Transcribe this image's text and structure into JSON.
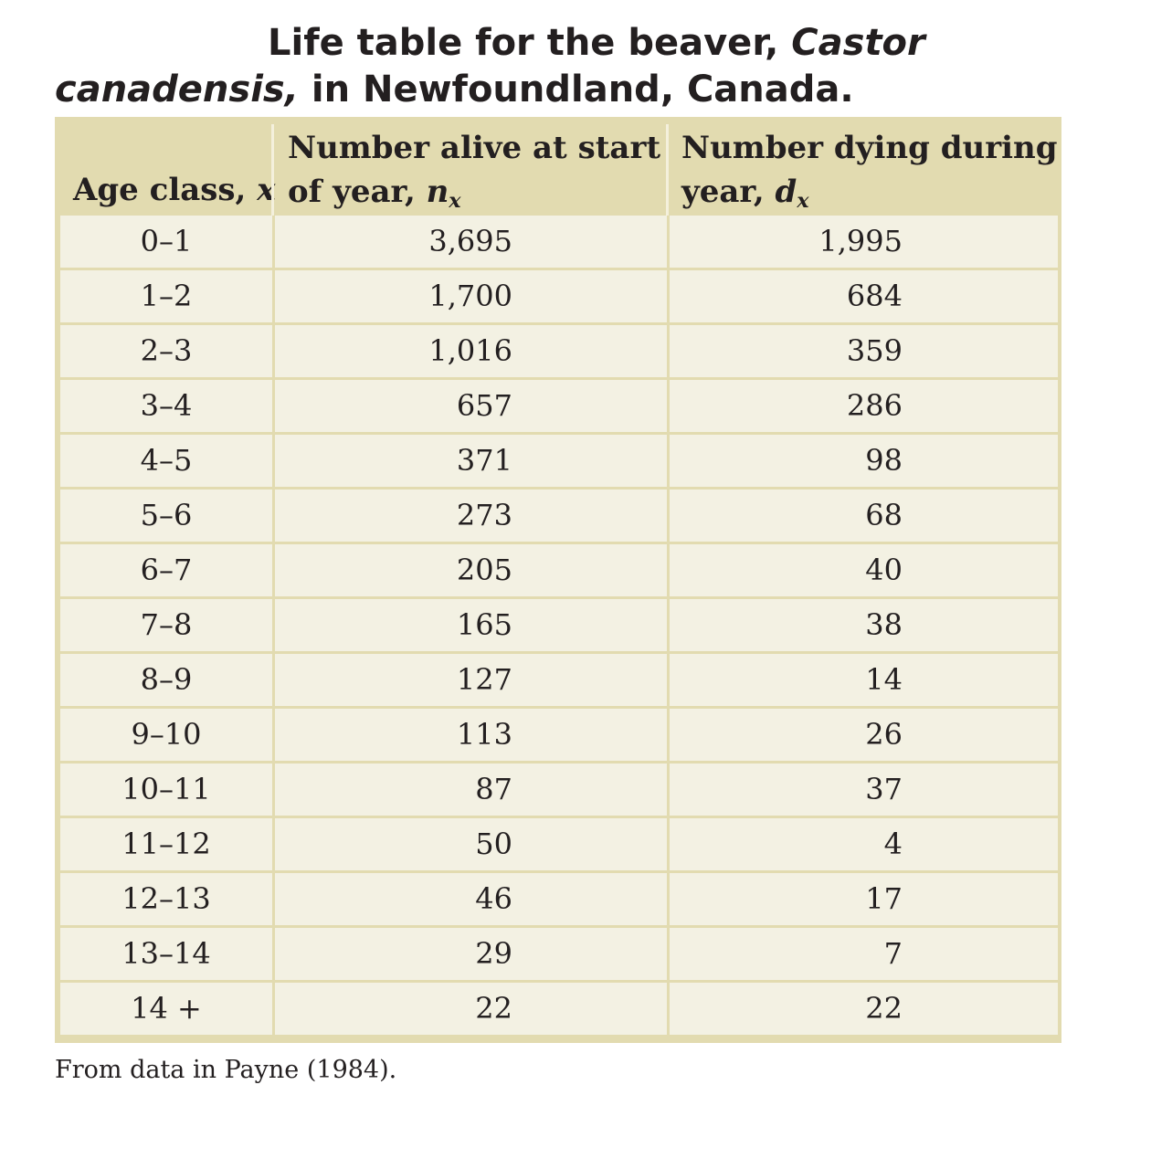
{
  "title": {
    "line1_plain": "Life table for the beaver, ",
    "line1_italic": "Castor",
    "line2_italic": "canadensis,",
    "line2_plain": " in Newfoundland, Canada."
  },
  "table": {
    "headers": {
      "age": "Age class, ",
      "age_var": "x",
      "alive_line1": "Number alive at start",
      "alive_line2": "of year, ",
      "alive_var": "n",
      "alive_sub": "x",
      "dying_line1": "Number dying during",
      "dying_line2": "year, ",
      "dying_var": "d",
      "dying_sub": "x"
    },
    "rows": [
      {
        "age": "0–1",
        "n": "3,695",
        "d": "1,995"
      },
      {
        "age": "1–2",
        "n": "1,700",
        "d": "684"
      },
      {
        "age": "2–3",
        "n": "1,016",
        "d": "359"
      },
      {
        "age": "3–4",
        "n": "657",
        "d": "286"
      },
      {
        "age": "4–5",
        "n": "371",
        "d": "98"
      },
      {
        "age": "5–6",
        "n": "273",
        "d": "68"
      },
      {
        "age": "6–7",
        "n": "205",
        "d": "40"
      },
      {
        "age": "7–8",
        "n": "165",
        "d": "38"
      },
      {
        "age": "8–9",
        "n": "127",
        "d": "14"
      },
      {
        "age": "9–10",
        "n": "113",
        "d": "26"
      },
      {
        "age": "10–11",
        "n": "87",
        "d": "37"
      },
      {
        "age": "11–12",
        "n": "50",
        "d": "4"
      },
      {
        "age": "12–13",
        "n": "46",
        "d": "17"
      },
      {
        "age": "13–14",
        "n": "29",
        "d": "7"
      },
      {
        "age": "14 +",
        "n": "22",
        "d": "22"
      }
    ]
  },
  "source": "From data in Payne (1984)."
}
